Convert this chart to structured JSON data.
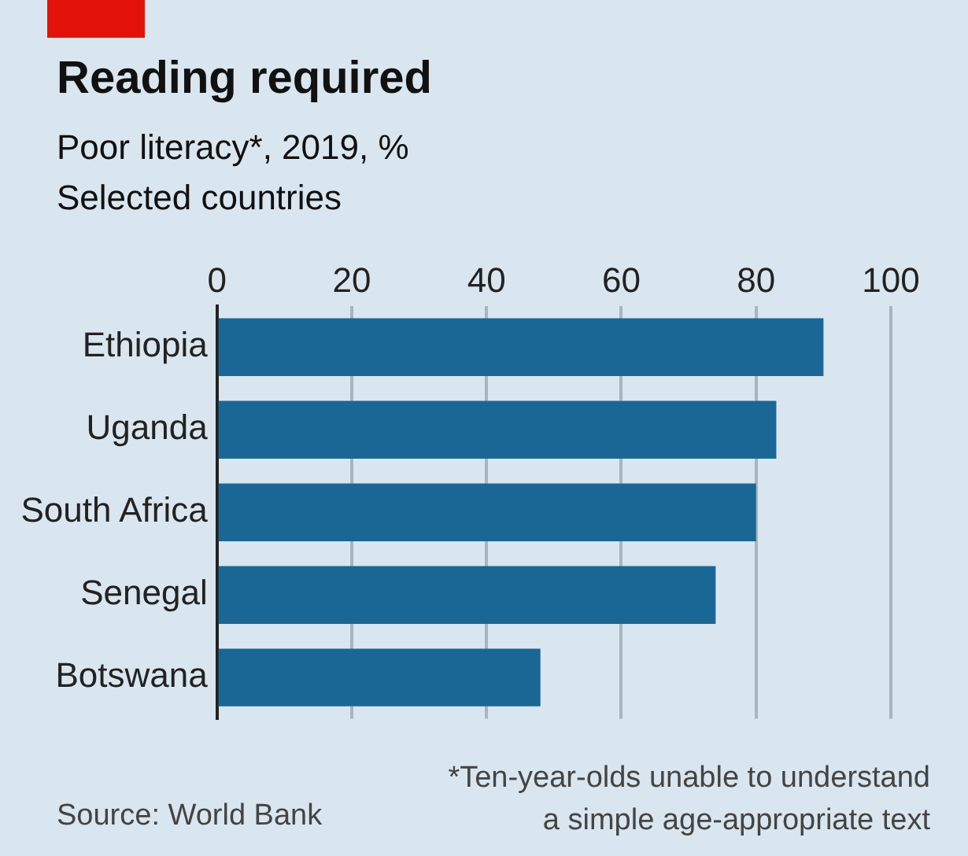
{
  "chart_data": {
    "type": "bar",
    "orientation": "horizontal",
    "title": "Reading required",
    "subtitle": "Poor literacy*, 2019, %\nSelected countries",
    "categories": [
      "Ethiopia",
      "Uganda",
      "South Africa",
      "Senegal",
      "Botswana"
    ],
    "values": [
      90,
      83,
      80,
      74,
      48
    ],
    "color": "#1a6796",
    "xlim": [
      0,
      100
    ],
    "xticks": [
      0,
      20,
      40,
      60,
      80,
      100
    ],
    "grid": "x",
    "legend": false,
    "annotations": [
      "Source: World Bank",
      "*Ten-year-olds unable to understand\na simple age-appropriate text"
    ]
  }
}
